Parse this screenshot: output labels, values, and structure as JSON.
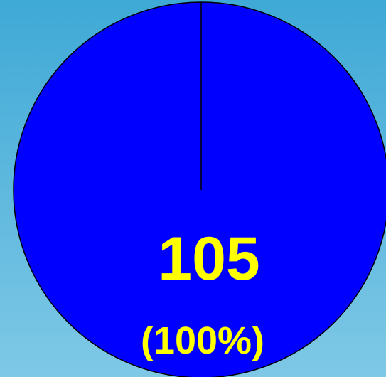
{
  "chart_data": {
    "type": "pie",
    "slices": [
      {
        "value": 105,
        "percent": 100,
        "value_label": "105",
        "percent_label": "(100%)",
        "color": "#0000FF"
      }
    ]
  },
  "colors": {
    "background_top": "#3FA9D6",
    "background_bottom": "#7EC8E6",
    "slice_fill": "#0000FF",
    "label_text": "#FFFF00",
    "outline": "#000000"
  }
}
